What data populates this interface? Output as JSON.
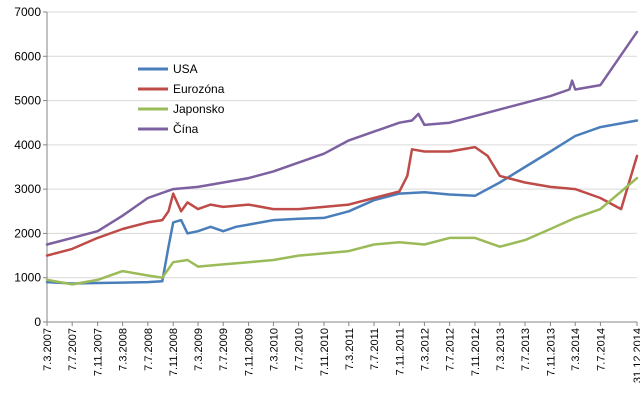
{
  "chart_data": {
    "type": "line",
    "title": "",
    "xlabel": "",
    "ylabel": "",
    "ylim": [
      0,
      7000
    ],
    "yticks": [
      0,
      1000,
      2000,
      3000,
      4000,
      5000,
      6000,
      7000
    ],
    "xlim": [
      "2007-03-07",
      "2014-12-31"
    ],
    "xtick_labels": [
      "7.3.2007",
      "7.7.2007",
      "7.11.2007",
      "7.3.2008",
      "7.7.2008",
      "7.11.2008",
      "7.3.2009",
      "7.7.2009",
      "7.11.2009",
      "7.3.2010",
      "7.7.2010",
      "7.11.2010",
      "7.3.2011",
      "7.7.2011",
      "7.11.2011",
      "7.3.2012",
      "7.7.2012",
      "7.11.2012",
      "7.3.2013",
      "7.7.2013",
      "7.11.2013",
      "7.3.2014",
      "7.7.2014",
      "31.12.2014"
    ],
    "xtick_dates": [
      "2007-03-07",
      "2007-07-07",
      "2007-11-07",
      "2008-03-07",
      "2008-07-07",
      "2008-11-07",
      "2009-03-07",
      "2009-07-07",
      "2009-11-07",
      "2010-03-07",
      "2010-07-07",
      "2010-11-07",
      "2011-03-07",
      "2011-07-07",
      "2011-11-07",
      "2012-03-07",
      "2012-07-07",
      "2012-11-07",
      "2013-03-07",
      "2013-07-07",
      "2013-11-07",
      "2014-03-07",
      "2014-07-07",
      "2014-12-31"
    ],
    "grid": "horizontal",
    "legend": "top-left",
    "series": [
      {
        "name": "USA",
        "color": "#4a7ebb",
        "points": [
          [
            "2007-03-07",
            900
          ],
          [
            "2007-07-07",
            870
          ],
          [
            "2007-11-07",
            880
          ],
          [
            "2008-03-07",
            890
          ],
          [
            "2008-07-07",
            900
          ],
          [
            "2008-09-15",
            920
          ],
          [
            "2008-10-15",
            1700
          ],
          [
            "2008-11-07",
            2250
          ],
          [
            "2008-12-15",
            2300
          ],
          [
            "2009-01-15",
            2000
          ],
          [
            "2009-03-07",
            2050
          ],
          [
            "2009-05-07",
            2150
          ],
          [
            "2009-07-07",
            2050
          ],
          [
            "2009-09-07",
            2150
          ],
          [
            "2009-11-07",
            2200
          ],
          [
            "2010-03-07",
            2300
          ],
          [
            "2010-07-07",
            2330
          ],
          [
            "2010-11-07",
            2350
          ],
          [
            "2011-03-07",
            2500
          ],
          [
            "2011-07-07",
            2750
          ],
          [
            "2011-11-07",
            2900
          ],
          [
            "2012-03-07",
            2930
          ],
          [
            "2012-07-07",
            2880
          ],
          [
            "2012-11-07",
            2850
          ],
          [
            "2013-03-07",
            3150
          ],
          [
            "2013-07-07",
            3500
          ],
          [
            "2013-11-07",
            3850
          ],
          [
            "2014-03-07",
            4200
          ],
          [
            "2014-07-07",
            4400
          ],
          [
            "2014-12-31",
            4550
          ]
        ]
      },
      {
        "name": "Eurozóna",
        "color": "#be4b48",
        "points": [
          [
            "2007-03-07",
            1500
          ],
          [
            "2007-07-07",
            1650
          ],
          [
            "2007-11-07",
            1900
          ],
          [
            "2008-03-07",
            2100
          ],
          [
            "2008-07-07",
            2250
          ],
          [
            "2008-09-15",
            2300
          ],
          [
            "2008-10-15",
            2500
          ],
          [
            "2008-11-07",
            2900
          ],
          [
            "2008-12-15",
            2500
          ],
          [
            "2009-01-15",
            2700
          ],
          [
            "2009-03-07",
            2550
          ],
          [
            "2009-05-07",
            2650
          ],
          [
            "2009-07-07",
            2600
          ],
          [
            "2009-11-07",
            2650
          ],
          [
            "2010-03-07",
            2550
          ],
          [
            "2010-07-07",
            2550
          ],
          [
            "2010-11-07",
            2600
          ],
          [
            "2011-03-07",
            2650
          ],
          [
            "2011-07-07",
            2800
          ],
          [
            "2011-11-07",
            2950
          ],
          [
            "2011-12-15",
            3300
          ],
          [
            "2012-01-07",
            3900
          ],
          [
            "2012-03-07",
            3850
          ],
          [
            "2012-07-07",
            3850
          ],
          [
            "2012-11-07",
            3950
          ],
          [
            "2013-01-07",
            3750
          ],
          [
            "2013-03-07",
            3300
          ],
          [
            "2013-07-07",
            3150
          ],
          [
            "2013-11-07",
            3050
          ],
          [
            "2014-03-07",
            3000
          ],
          [
            "2014-07-07",
            2800
          ],
          [
            "2014-10-15",
            2550
          ],
          [
            "2014-12-31",
            3750
          ]
        ]
      },
      {
        "name": "Japonsko",
        "color": "#9bbb59",
        "points": [
          [
            "2007-03-07",
            950
          ],
          [
            "2007-07-07",
            850
          ],
          [
            "2007-11-07",
            950
          ],
          [
            "2008-03-07",
            1150
          ],
          [
            "2008-07-07",
            1050
          ],
          [
            "2008-09-15",
            1000
          ],
          [
            "2008-11-07",
            1350
          ],
          [
            "2009-01-15",
            1400
          ],
          [
            "2009-03-07",
            1250
          ],
          [
            "2009-07-07",
            1300
          ],
          [
            "2009-11-07",
            1350
          ],
          [
            "2010-03-07",
            1400
          ],
          [
            "2010-07-07",
            1500
          ],
          [
            "2010-11-07",
            1550
          ],
          [
            "2011-03-07",
            1600
          ],
          [
            "2011-07-07",
            1750
          ],
          [
            "2011-11-07",
            1800
          ],
          [
            "2012-03-07",
            1750
          ],
          [
            "2012-07-07",
            1900
          ],
          [
            "2012-11-07",
            1900
          ],
          [
            "2013-03-07",
            1700
          ],
          [
            "2013-07-07",
            1850
          ],
          [
            "2013-11-07",
            2100
          ],
          [
            "2014-03-07",
            2350
          ],
          [
            "2014-07-07",
            2550
          ],
          [
            "2014-12-31",
            3250
          ]
        ]
      },
      {
        "name": "Čína",
        "color": "#7d60a0",
        "points": [
          [
            "2007-03-07",
            1750
          ],
          [
            "2007-07-07",
            1900
          ],
          [
            "2007-11-07",
            2050
          ],
          [
            "2008-03-07",
            2400
          ],
          [
            "2008-07-07",
            2800
          ],
          [
            "2008-11-07",
            3000
          ],
          [
            "2009-03-07",
            3050
          ],
          [
            "2009-07-07",
            3150
          ],
          [
            "2009-11-07",
            3250
          ],
          [
            "2010-03-07",
            3400
          ],
          [
            "2010-07-07",
            3600
          ],
          [
            "2010-11-07",
            3800
          ],
          [
            "2011-03-07",
            4100
          ],
          [
            "2011-07-07",
            4300
          ],
          [
            "2011-11-07",
            4500
          ],
          [
            "2012-01-07",
            4550
          ],
          [
            "2012-02-07",
            4700
          ],
          [
            "2012-03-07",
            4450
          ],
          [
            "2012-07-07",
            4500
          ],
          [
            "2012-11-07",
            4650
          ],
          [
            "2013-03-07",
            4800
          ],
          [
            "2013-07-07",
            4950
          ],
          [
            "2013-11-07",
            5100
          ],
          [
            "2014-02-07",
            5250
          ],
          [
            "2014-02-20",
            5450
          ],
          [
            "2014-03-07",
            5250
          ],
          [
            "2014-07-07",
            5350
          ],
          [
            "2014-12-31",
            6550
          ]
        ]
      }
    ]
  }
}
